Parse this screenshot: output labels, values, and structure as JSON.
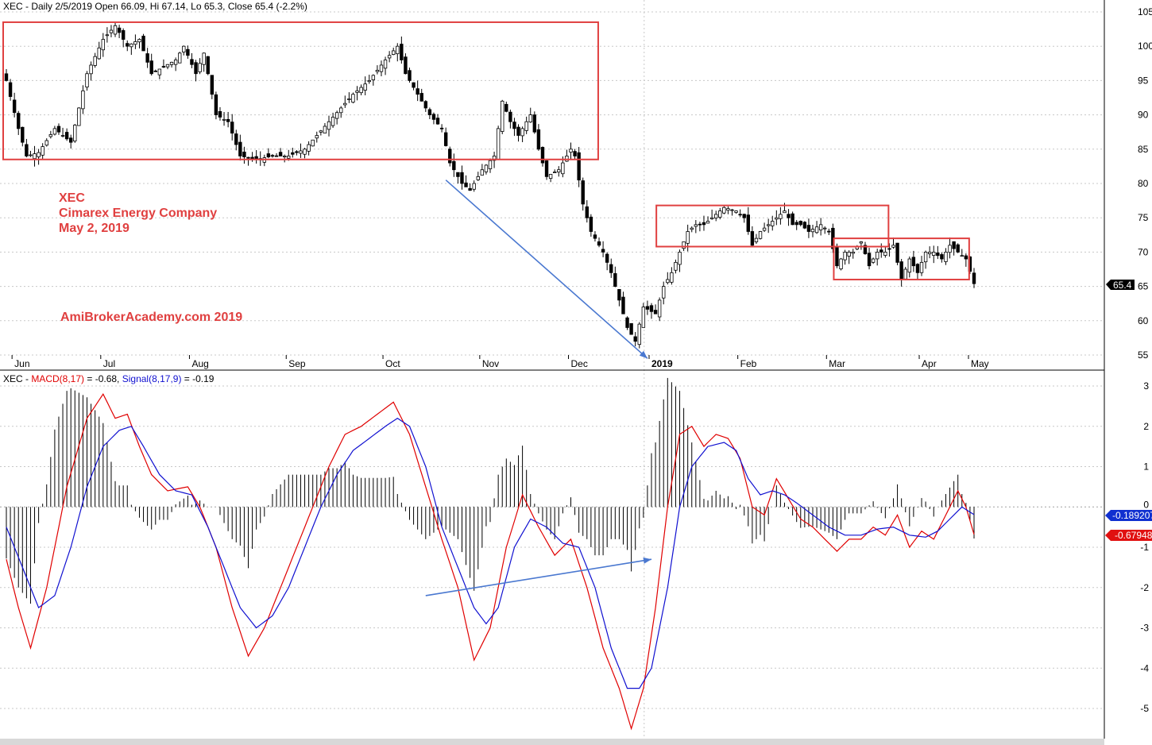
{
  "header": {
    "price": "XEC - Daily 2/5/2019 Open 66.09, Hi 67.14, Lo 65.3, Close 65.4 (-2.2%)",
    "macd_prefix": "XEC - ",
    "macd_label": "MACD(8,17)",
    "macd_eq": " = -0.68, ",
    "signal_label": "Signal(8,17,9)",
    "signal_eq": " = -0.19"
  },
  "annotations": {
    "ticker": "XEC",
    "company": "Cimarex Energy Company",
    "date": "May 2, 2019",
    "watermark": "AmiBrokerAcademy.com  2019"
  },
  "markers": {
    "last_price": "65.4",
    "signal_value": "-0.189207",
    "macd_value": "-0.67948"
  },
  "colors": {
    "macd": "#e00000",
    "signal": "#1010d0",
    "box": "#e04040",
    "arrow": "#4a78d0",
    "annotation": "#e04040"
  },
  "chart_data": [
    {
      "type": "candlestick",
      "title": "XEC - Daily 2/5/2019 Open 66.09, Hi 67.14, Lo 65.3, Close 65.4 (-2.2%)",
      "x_ticks": [
        "Jun",
        "Jul",
        "Aug",
        "Sep",
        "Oct",
        "Nov",
        "Dec",
        "2019",
        "Feb",
        "Mar",
        "Apr",
        "May"
      ],
      "ylim": [
        54,
        106
      ],
      "y_ticks": [
        55,
        60,
        65,
        70,
        75,
        80,
        85,
        90,
        95,
        100,
        105
      ],
      "grid": true,
      "anchors": [
        {
          "i": 0,
          "v": 95
        },
        {
          "i": 3,
          "v": 88
        },
        {
          "i": 5,
          "v": 84
        },
        {
          "i": 8,
          "v": 84.5
        },
        {
          "i": 12,
          "v": 88
        },
        {
          "i": 16,
          "v": 86
        },
        {
          "i": 20,
          "v": 96
        },
        {
          "i": 24,
          "v": 101
        },
        {
          "i": 27,
          "v": 103
        },
        {
          "i": 30,
          "v": 100
        },
        {
          "i": 33,
          "v": 101
        },
        {
          "i": 36,
          "v": 96
        },
        {
          "i": 39,
          "v": 97
        },
        {
          "i": 42,
          "v": 98
        },
        {
          "i": 44,
          "v": 100
        },
        {
          "i": 47,
          "v": 96
        },
        {
          "i": 49,
          "v": 99
        },
        {
          "i": 52,
          "v": 90
        },
        {
          "i": 55,
          "v": 89
        },
        {
          "i": 58,
          "v": 84
        },
        {
          "i": 62,
          "v": 83.5
        },
        {
          "i": 66,
          "v": 84
        },
        {
          "i": 70,
          "v": 84
        },
        {
          "i": 74,
          "v": 85
        },
        {
          "i": 77,
          "v": 87
        },
        {
          "i": 80,
          "v": 89
        },
        {
          "i": 83,
          "v": 91
        },
        {
          "i": 86,
          "v": 93
        },
        {
          "i": 90,
          "v": 95
        },
        {
          "i": 94,
          "v": 98
        },
        {
          "i": 97,
          "v": 100
        },
        {
          "i": 99,
          "v": 96
        },
        {
          "i": 102,
          "v": 93
        },
        {
          "i": 105,
          "v": 90
        },
        {
          "i": 108,
          "v": 88
        },
        {
          "i": 110,
          "v": 83
        },
        {
          "i": 113,
          "v": 80
        },
        {
          "i": 115,
          "v": 79
        },
        {
          "i": 118,
          "v": 82
        },
        {
          "i": 121,
          "v": 84
        },
        {
          "i": 123,
          "v": 92
        },
        {
          "i": 125,
          "v": 89
        },
        {
          "i": 127,
          "v": 87
        },
        {
          "i": 130,
          "v": 90
        },
        {
          "i": 132,
          "v": 85
        },
        {
          "i": 134,
          "v": 81
        },
        {
          "i": 137,
          "v": 82
        },
        {
          "i": 140,
          "v": 85
        },
        {
          "i": 141,
          "v": 84
        },
        {
          "i": 143,
          "v": 77
        },
        {
          "i": 145,
          "v": 73
        },
        {
          "i": 148,
          "v": 70
        },
        {
          "i": 150,
          "v": 67
        },
        {
          "i": 152,
          "v": 63
        },
        {
          "i": 154,
          "v": 59
        },
        {
          "i": 156,
          "v": 57
        },
        {
          "i": 158,
          "v": 62
        },
        {
          "i": 161,
          "v": 61
        },
        {
          "i": 163,
          "v": 65
        },
        {
          "i": 165,
          "v": 67
        },
        {
          "i": 167,
          "v": 70
        },
        {
          "i": 169,
          "v": 73
        },
        {
          "i": 171,
          "v": 74
        },
        {
          "i": 173,
          "v": 74
        },
        {
          "i": 175,
          "v": 75
        },
        {
          "i": 178,
          "v": 76.5
        },
        {
          "i": 181,
          "v": 76
        },
        {
          "i": 183,
          "v": 75
        },
        {
          "i": 185,
          "v": 71
        },
        {
          "i": 187,
          "v": 73
        },
        {
          "i": 189,
          "v": 74
        },
        {
          "i": 191,
          "v": 75
        },
        {
          "i": 193,
          "v": 76
        },
        {
          "i": 195,
          "v": 74
        },
        {
          "i": 197,
          "v": 74
        },
        {
          "i": 199,
          "v": 73
        },
        {
          "i": 202,
          "v": 74
        },
        {
          "i": 204,
          "v": 73
        },
        {
          "i": 206,
          "v": 68
        },
        {
          "i": 208,
          "v": 70
        },
        {
          "i": 210,
          "v": 70
        },
        {
          "i": 212,
          "v": 71.5
        },
        {
          "i": 214,
          "v": 68
        },
        {
          "i": 216,
          "v": 70
        },
        {
          "i": 218,
          "v": 70
        },
        {
          "i": 220,
          "v": 71
        },
        {
          "i": 222,
          "v": 66
        },
        {
          "i": 224,
          "v": 69
        },
        {
          "i": 226,
          "v": 67
        },
        {
          "i": 228,
          "v": 70
        },
        {
          "i": 230,
          "v": 70
        },
        {
          "i": 232,
          "v": 69
        },
        {
          "i": 234,
          "v": 71
        },
        {
          "i": 236,
          "v": 70
        },
        {
          "i": 238,
          "v": 69
        },
        {
          "i": 240,
          "v": 65.4
        }
      ],
      "boxes": [
        {
          "x0": 0,
          "x1": 146,
          "y0": 83.5,
          "y1": 103.5
        },
        {
          "x0": 162,
          "x1": 218,
          "y0": 70.8,
          "y1": 76.8
        },
        {
          "x0": 206,
          "x1": 238,
          "y0": 66,
          "y1": 72
        }
      ],
      "arrow": {
        "from": {
          "i": 109,
          "v": 80.5
        },
        "to": {
          "i": 159,
          "v": 54.5
        }
      }
    },
    {
      "type": "line",
      "title": "MACD(8,17) / Signal(8,17,9)",
      "ylim": [
        -5.6,
        3.2
      ],
      "y_ticks": [
        3,
        2,
        1,
        0,
        -1,
        -2,
        -3,
        -4,
        -5
      ],
      "grid": true,
      "series": [
        {
          "name": "MACD(8,17)",
          "color": "#e00000",
          "points": [
            {
              "i": 0,
              "v": -1.3
            },
            {
              "i": 3,
              "v": -2.5
            },
            {
              "i": 6,
              "v": -3.5
            },
            {
              "i": 10,
              "v": -2
            },
            {
              "i": 15,
              "v": 0.5
            },
            {
              "i": 20,
              "v": 2.2
            },
            {
              "i": 24,
              "v": 2.8
            },
            {
              "i": 27,
              "v": 2.2
            },
            {
              "i": 30,
              "v": 2.3
            },
            {
              "i": 33,
              "v": 1.5
            },
            {
              "i": 36,
              "v": 0.8
            },
            {
              "i": 40,
              "v": 0.4
            },
            {
              "i": 45,
              "v": 0.5
            },
            {
              "i": 48,
              "v": 0
            },
            {
              "i": 52,
              "v": -1
            },
            {
              "i": 56,
              "v": -2.5
            },
            {
              "i": 60,
              "v": -3.7
            },
            {
              "i": 64,
              "v": -3
            },
            {
              "i": 68,
              "v": -2
            },
            {
              "i": 72,
              "v": -1
            },
            {
              "i": 76,
              "v": 0
            },
            {
              "i": 80,
              "v": 1
            },
            {
              "i": 84,
              "v": 1.8
            },
            {
              "i": 88,
              "v": 2
            },
            {
              "i": 92,
              "v": 2.3
            },
            {
              "i": 96,
              "v": 2.6
            },
            {
              "i": 100,
              "v": 1.8
            },
            {
              "i": 104,
              "v": 0.5
            },
            {
              "i": 108,
              "v": -0.8
            },
            {
              "i": 112,
              "v": -2
            },
            {
              "i": 116,
              "v": -3.8
            },
            {
              "i": 120,
              "v": -3
            },
            {
              "i": 124,
              "v": -1
            },
            {
              "i": 128,
              "v": 0.3
            },
            {
              "i": 132,
              "v": -0.5
            },
            {
              "i": 136,
              "v": -1.2
            },
            {
              "i": 140,
              "v": -0.8
            },
            {
              "i": 144,
              "v": -2
            },
            {
              "i": 148,
              "v": -3.5
            },
            {
              "i": 152,
              "v": -4.5
            },
            {
              "i": 155,
              "v": -5.5
            },
            {
              "i": 158,
              "v": -4.5
            },
            {
              "i": 161,
              "v": -2.5
            },
            {
              "i": 164,
              "v": 0
            },
            {
              "i": 167,
              "v": 1.8
            },
            {
              "i": 170,
              "v": 2
            },
            {
              "i": 173,
              "v": 1.5
            },
            {
              "i": 176,
              "v": 1.8
            },
            {
              "i": 179,
              "v": 1.7
            },
            {
              "i": 182,
              "v": 1.2
            },
            {
              "i": 185,
              "v": 0
            },
            {
              "i": 188,
              "v": -0.2
            },
            {
              "i": 191,
              "v": 0.7
            },
            {
              "i": 194,
              "v": 0.2
            },
            {
              "i": 197,
              "v": -0.3
            },
            {
              "i": 200,
              "v": -0.5
            },
            {
              "i": 203,
              "v": -0.8
            },
            {
              "i": 206,
              "v": -1.1
            },
            {
              "i": 209,
              "v": -0.8
            },
            {
              "i": 212,
              "v": -0.8
            },
            {
              "i": 215,
              "v": -0.5
            },
            {
              "i": 218,
              "v": -0.7
            },
            {
              "i": 221,
              "v": -0.2
            },
            {
              "i": 224,
              "v": -1
            },
            {
              "i": 227,
              "v": -0.6
            },
            {
              "i": 230,
              "v": -0.8
            },
            {
              "i": 233,
              "v": -0.2
            },
            {
              "i": 236,
              "v": 0.4
            },
            {
              "i": 238,
              "v": 0
            },
            {
              "i": 240,
              "v": -0.68
            }
          ]
        },
        {
          "name": "Signal(8,17,9)",
          "color": "#1010d0",
          "points": [
            {
              "i": 0,
              "v": -0.5
            },
            {
              "i": 4,
              "v": -1.5
            },
            {
              "i": 8,
              "v": -2.5
            },
            {
              "i": 12,
              "v": -2.2
            },
            {
              "i": 16,
              "v": -1
            },
            {
              "i": 20,
              "v": 0.5
            },
            {
              "i": 24,
              "v": 1.5
            },
            {
              "i": 28,
              "v": 1.9
            },
            {
              "i": 31,
              "v": 2
            },
            {
              "i": 34,
              "v": 1.5
            },
            {
              "i": 38,
              "v": 0.8
            },
            {
              "i": 42,
              "v": 0.4
            },
            {
              "i": 46,
              "v": 0.3
            },
            {
              "i": 50,
              "v": -0.5
            },
            {
              "i": 54,
              "v": -1.5
            },
            {
              "i": 58,
              "v": -2.5
            },
            {
              "i": 62,
              "v": -3
            },
            {
              "i": 66,
              "v": -2.7
            },
            {
              "i": 70,
              "v": -2
            },
            {
              "i": 74,
              "v": -1
            },
            {
              "i": 78,
              "v": 0
            },
            {
              "i": 82,
              "v": 0.8
            },
            {
              "i": 86,
              "v": 1.4
            },
            {
              "i": 90,
              "v": 1.7
            },
            {
              "i": 94,
              "v": 2
            },
            {
              "i": 97,
              "v": 2.2
            },
            {
              "i": 100,
              "v": 2
            },
            {
              "i": 104,
              "v": 1
            },
            {
              "i": 108,
              "v": -0.5
            },
            {
              "i": 112,
              "v": -1.5
            },
            {
              "i": 116,
              "v": -2.5
            },
            {
              "i": 119,
              "v": -2.9
            },
            {
              "i": 122,
              "v": -2.5
            },
            {
              "i": 126,
              "v": -1
            },
            {
              "i": 130,
              "v": -0.3
            },
            {
              "i": 134,
              "v": -0.5
            },
            {
              "i": 138,
              "v": -0.9
            },
            {
              "i": 142,
              "v": -1
            },
            {
              "i": 146,
              "v": -2
            },
            {
              "i": 150,
              "v": -3.5
            },
            {
              "i": 154,
              "v": -4.5
            },
            {
              "i": 157,
              "v": -4.5
            },
            {
              "i": 160,
              "v": -4
            },
            {
              "i": 164,
              "v": -2
            },
            {
              "i": 167,
              "v": 0
            },
            {
              "i": 170,
              "v": 1
            },
            {
              "i": 174,
              "v": 1.5
            },
            {
              "i": 178,
              "v": 1.6
            },
            {
              "i": 181,
              "v": 1.4
            },
            {
              "i": 184,
              "v": 0.7
            },
            {
              "i": 187,
              "v": 0.3
            },
            {
              "i": 190,
              "v": 0.4
            },
            {
              "i": 193,
              "v": 0.3
            },
            {
              "i": 196,
              "v": 0.1
            },
            {
              "i": 200,
              "v": -0.2
            },
            {
              "i": 204,
              "v": -0.5
            },
            {
              "i": 208,
              "v": -0.7
            },
            {
              "i": 212,
              "v": -0.7
            },
            {
              "i": 216,
              "v": -0.55
            },
            {
              "i": 220,
              "v": -0.5
            },
            {
              "i": 224,
              "v": -0.7
            },
            {
              "i": 228,
              "v": -0.75
            },
            {
              "i": 231,
              "v": -0.6
            },
            {
              "i": 234,
              "v": -0.3
            },
            {
              "i": 237,
              "v": 0
            },
            {
              "i": 240,
              "v": -0.19
            }
          ]
        }
      ],
      "arrow": {
        "from": {
          "i": 104,
          "v": -2.2
        },
        "to": {
          "i": 160,
          "v": -1.3
        }
      }
    }
  ]
}
